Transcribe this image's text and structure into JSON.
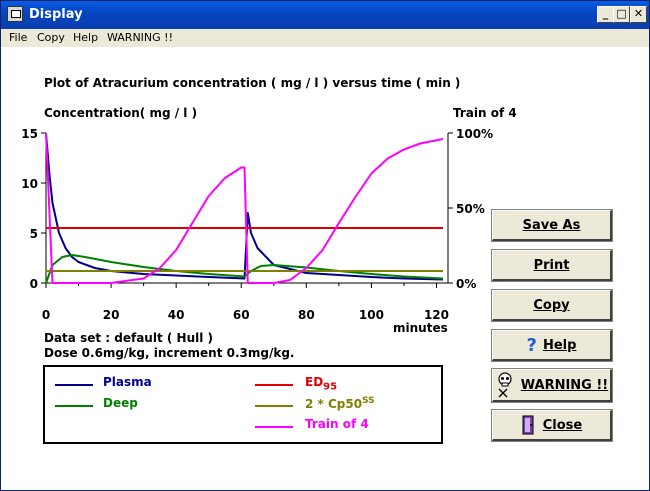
{
  "window": {
    "title": "Display"
  },
  "menu": [
    "File",
    "Copy",
    "Help",
    "WARNING !!"
  ],
  "plot": {
    "title": "Plot of Atracurium concentration ( mg / l ) versus time ( min )",
    "left_axis_label": "Concentration( mg / l )",
    "right_axis_label": "Train of 4",
    "x_unit": "minutes",
    "x_ticks": [
      "0",
      "20",
      "40",
      "60",
      "80",
      "100",
      "120"
    ],
    "y_ticks": [
      "0",
      "5",
      "10",
      "15"
    ],
    "y2_ticks": [
      "0%",
      "50%",
      "100%"
    ]
  },
  "info": {
    "dataset": "Data set : default ( Hull )",
    "dose": "Dose 0.6mg/kg, increment 0.3mg/kg."
  },
  "legend": {
    "plasma": "Plasma",
    "deep": "Deep",
    "ed_main": "ED",
    "ed_sub": "95",
    "cp_main": "2 * Cp50",
    "cp_sup": "SS",
    "tof": "Train of 4"
  },
  "buttons": {
    "save_as": "Save As",
    "print": "Print",
    "copy": "Copy",
    "help": "Help",
    "warning": "WARNING !!",
    "close": "Close"
  },
  "colors": {
    "plasma": "#00008b",
    "deep": "#008000",
    "ed95": "#e00000",
    "cp50": "#808000",
    "tof": "#ff00ff"
  },
  "chart_data": {
    "type": "line",
    "xlabel": "minutes",
    "ylabel": "Concentration( mg / l )",
    "y2label": "Train of 4",
    "xlim": [
      0,
      125
    ],
    "ylim": [
      0,
      15
    ],
    "y2lim": [
      "0%",
      "100%"
    ],
    "grid": false,
    "series": [
      {
        "name": "Plasma",
        "axis": "left",
        "x": [
          0,
          1,
          2,
          4,
          6,
          8,
          10,
          15,
          20,
          30,
          40,
          50,
          61,
          62,
          63,
          65,
          70,
          80,
          90,
          100,
          110,
          122
        ],
        "y": [
          15,
          11,
          8,
          5,
          3.5,
          2.6,
          2.1,
          1.5,
          1.2,
          0.9,
          0.75,
          0.6,
          0.45,
          7,
          5,
          3.5,
          1.8,
          1.0,
          0.8,
          0.6,
          0.45,
          0.35
        ]
      },
      {
        "name": "Deep",
        "axis": "left",
        "x": [
          0,
          2,
          5,
          8,
          12,
          20,
          30,
          40,
          50,
          61,
          63,
          66,
          70,
          80,
          90,
          100,
          110,
          122
        ],
        "y": [
          0,
          1.8,
          2.6,
          2.8,
          2.6,
          2.1,
          1.6,
          1.2,
          0.9,
          0.65,
          1.2,
          1.7,
          1.8,
          1.55,
          1.2,
          0.9,
          0.65,
          0.45
        ]
      },
      {
        "name": "ED95",
        "axis": "left",
        "x": [
          0,
          122
        ],
        "y": [
          5.5,
          5.5
        ]
      },
      {
        "name": "2 * Cp50 SS",
        "axis": "left",
        "x": [
          0,
          122
        ],
        "y": [
          1.2,
          1.2
        ]
      },
      {
        "name": "Train of 4",
        "axis": "right",
        "x": [
          0,
          2,
          10,
          20,
          30,
          35,
          40,
          45,
          50,
          55,
          60,
          61,
          62,
          70,
          75,
          80,
          85,
          90,
          95,
          100,
          105,
          110,
          115,
          122
        ],
        "y": [
          1.0,
          0.0,
          0.0,
          0.0,
          0.03,
          0.1,
          0.22,
          0.4,
          0.58,
          0.7,
          0.77,
          0.77,
          0.0,
          0.0,
          0.02,
          0.1,
          0.22,
          0.4,
          0.57,
          0.73,
          0.83,
          0.89,
          0.93,
          0.96
        ]
      }
    ]
  }
}
